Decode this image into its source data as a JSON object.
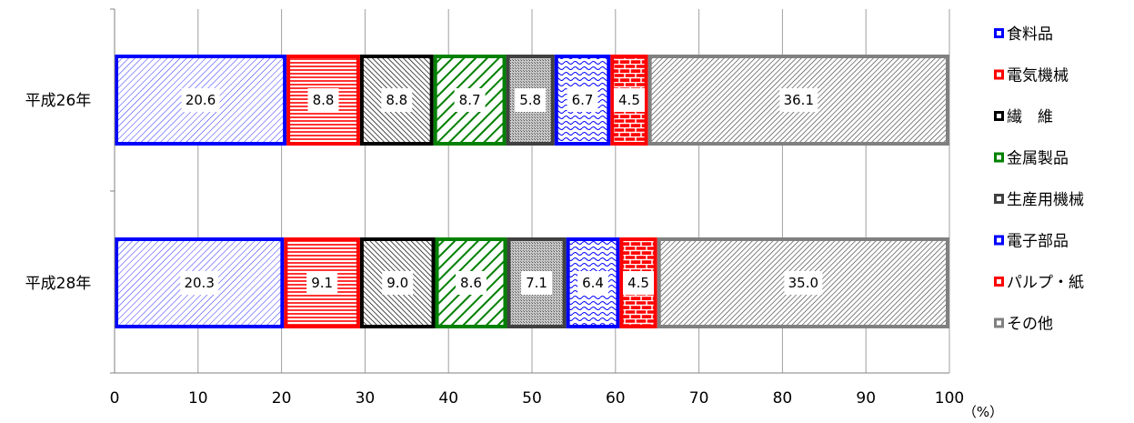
{
  "chart_data": {
    "type": "bar",
    "orientation": "horizontal",
    "stacked": true,
    "categories": [
      "平成26年",
      "平成28年"
    ],
    "series": [
      {
        "name": "食料品",
        "values": [
          20.6,
          20.3
        ],
        "color": "#0000ff",
        "pattern": "diag-thin"
      },
      {
        "name": "電気機械",
        "values": [
          8.8,
          9.1
        ],
        "color": "#ff0000",
        "pattern": "horizontal"
      },
      {
        "name": "繊　維",
        "values": [
          8.8,
          9.0
        ],
        "color": "#000000",
        "pattern": "diag-dense"
      },
      {
        "name": "金属製品",
        "values": [
          8.7,
          8.6
        ],
        "color": "#008000",
        "pattern": "diag-wide"
      },
      {
        "name": "生産用機械",
        "values": [
          5.8,
          7.1
        ],
        "color": "#404040",
        "pattern": "dots"
      },
      {
        "name": "電子部品",
        "values": [
          6.7,
          6.4
        ],
        "color": "#0000ff",
        "pattern": "wave"
      },
      {
        "name": "パルプ・紙",
        "values": [
          4.5,
          4.5
        ],
        "color": "#ff0000",
        "pattern": "brick"
      },
      {
        "name": "その他",
        "values": [
          36.1,
          35.0
        ],
        "color": "#808080",
        "pattern": "diag-gray"
      }
    ],
    "xlim": [
      0,
      100
    ],
    "xticks": [
      "0",
      "10",
      "20",
      "30",
      "40",
      "50",
      "60",
      "70",
      "80",
      "90",
      "100"
    ],
    "unit_label": "（%）",
    "grid": true,
    "legend_position": "right"
  }
}
